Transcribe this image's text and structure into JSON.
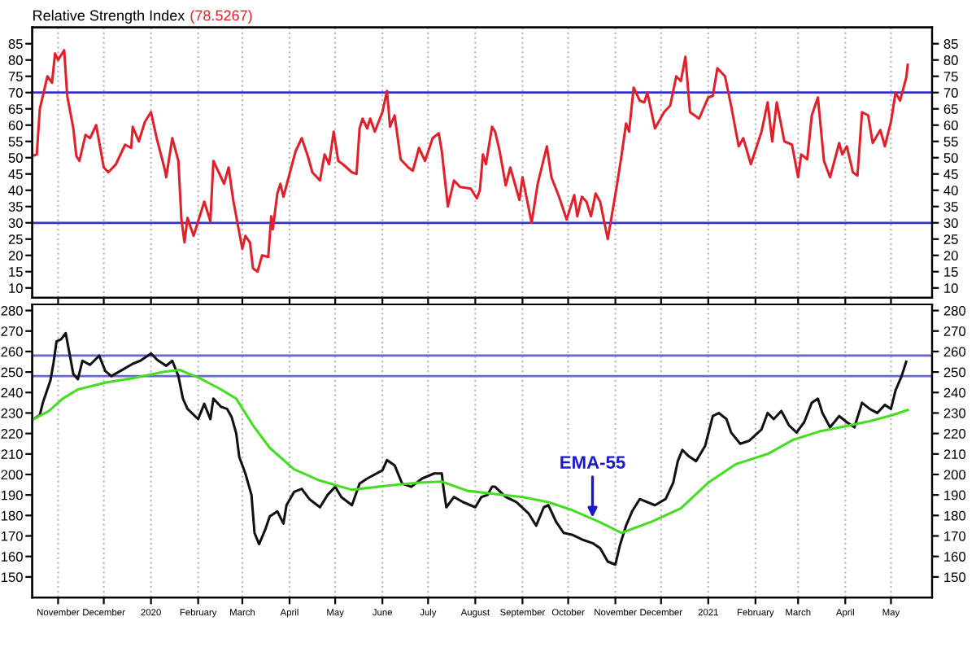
{
  "chart_data": [
    {
      "type": "line",
      "title": "Relative Strength Index",
      "subtitle": "(78.5267)",
      "x": [
        "2019-10-15",
        "2019-10-18",
        "2019-10-20",
        "2019-10-25",
        "2019-10-28",
        "2019-10-30",
        "2019-11-01",
        "2019-11-05",
        "2019-11-07",
        "2019-11-11",
        "2019-11-13",
        "2019-11-15",
        "2019-11-19",
        "2019-11-22",
        "2019-11-26",
        "2019-12-01",
        "2019-12-04",
        "2019-12-09",
        "2019-12-15",
        "2019-12-19",
        "2019-12-20",
        "2019-12-24",
        "2019-12-28",
        "2020-01-01",
        "2020-01-05",
        "2020-01-10",
        "2020-01-11",
        "2020-01-15",
        "2020-01-19",
        "2020-01-21",
        "2020-01-23",
        "2020-01-25",
        "2020-01-29",
        "2020-02-05",
        "2020-02-09",
        "2020-02-11",
        "2020-02-16",
        "2020-02-18",
        "2020-02-21",
        "2020-02-24",
        "2020-03-01",
        "2020-03-03",
        "2020-03-06",
        "2020-03-08",
        "2020-03-11",
        "2020-03-14",
        "2020-03-18",
        "2020-03-20",
        "2020-03-21",
        "2020-03-24",
        "2020-03-26",
        "2020-03-28",
        "2020-04-01",
        "2020-04-05",
        "2020-04-09",
        "2020-04-13",
        "2020-04-16",
        "2020-04-21",
        "2020-04-24",
        "2020-04-27",
        "2020-04-30",
        "2020-05-03",
        "2020-05-06",
        "2020-05-12",
        "2020-05-15",
        "2020-05-17",
        "2020-05-19",
        "2020-05-22",
        "2020-05-24",
        "2020-05-27",
        "2020-06-01",
        "2020-06-04",
        "2020-06-06",
        "2020-06-09",
        "2020-06-13",
        "2020-06-18",
        "2020-06-21",
        "2020-06-25",
        "2020-06-29",
        "2020-07-04",
        "2020-07-08",
        "2020-07-10",
        "2020-07-14",
        "2020-07-18",
        "2020-07-22",
        "2020-07-29",
        "2020-08-02",
        "2020-08-04",
        "2020-08-06",
        "2020-08-08",
        "2020-08-12",
        "2020-08-14",
        "2020-08-17",
        "2020-08-21",
        "2020-08-24",
        "2020-08-30",
        "2020-09-01",
        "2020-09-04",
        "2020-09-07",
        "2020-09-11",
        "2020-09-17",
        "2020-09-20",
        "2020-09-25",
        "2020-09-30",
        "2020-10-05",
        "2020-10-07",
        "2020-10-10",
        "2020-10-13",
        "2020-10-16",
        "2020-10-19",
        "2020-10-22",
        "2020-10-27",
        "2020-10-29",
        "2020-11-02",
        "2020-11-05",
        "2020-11-08",
        "2020-11-10",
        "2020-11-13",
        "2020-11-17",
        "2020-11-20",
        "2020-11-22",
        "2020-11-27",
        "2020-12-03",
        "2020-12-07",
        "2020-12-11",
        "2020-12-14",
        "2020-12-17",
        "2020-12-20",
        "2020-12-26",
        "2021-01-01",
        "2021-01-04",
        "2021-01-07",
        "2021-01-12",
        "2021-01-16",
        "2021-01-21",
        "2021-01-24",
        "2021-01-29",
        "2021-02-05",
        "2021-02-09",
        "2021-02-12",
        "2021-02-15",
        "2021-02-20",
        "2021-02-25",
        "2021-03-01",
        "2021-03-03",
        "2021-03-07",
        "2021-03-10",
        "2021-03-14",
        "2021-03-18",
        "2021-03-22",
        "2021-03-28",
        "2021-03-30",
        "2021-04-02",
        "2021-04-06",
        "2021-04-09",
        "2021-04-12",
        "2021-04-16",
        "2021-04-19",
        "2021-04-24",
        "2021-04-27",
        "2021-05-01",
        "2021-05-04",
        "2021-05-07",
        "2021-05-11",
        "2021-05-12"
      ],
      "series": [
        {
          "color": "#e0202a",
          "values": [
            50.5,
            51,
            65,
            75,
            73,
            82,
            80,
            83,
            69,
            59,
            50.5,
            49,
            57,
            56,
            60,
            47,
            45.5,
            48,
            54,
            53,
            59.5,
            55,
            61,
            64,
            55.5,
            46.5,
            44,
            56,
            49,
            31,
            24,
            31.5,
            26,
            36.5,
            30.5,
            49,
            44,
            42,
            47,
            37,
            22,
            26,
            24,
            16,
            15,
            20,
            19.5,
            32,
            28,
            39,
            42,
            38,
            45,
            52,
            56,
            50.5,
            45.5,
            43,
            51,
            48,
            58,
            49,
            48,
            45.5,
            45,
            59,
            62,
            59,
            62,
            58,
            64,
            70.5,
            59.5,
            63,
            49.5,
            47,
            46,
            53,
            49,
            56,
            57.5,
            52,
            35,
            43,
            41,
            40.5,
            37.5,
            40,
            51,
            48,
            59.5,
            58,
            52,
            41.5,
            47,
            37,
            44,
            37,
            30,
            42,
            53.5,
            44,
            38,
            31,
            38.5,
            32,
            38,
            36.5,
            32,
            39,
            36.5,
            25,
            30.5,
            41.5,
            50.5,
            60.5,
            58,
            71.5,
            67.5,
            67,
            70,
            59,
            64,
            66,
            75,
            73.5,
            81,
            64,
            62,
            68.5,
            69,
            77.5,
            75,
            66,
            53.5,
            56,
            48,
            58,
            67,
            55,
            67,
            55,
            54,
            44,
            51,
            49.5,
            63,
            68.5,
            49,
            44,
            54.5,
            51,
            53.5,
            45.5,
            44.5,
            64,
            63,
            54.5,
            58.5,
            53.5,
            61,
            70,
            67.5,
            74.5,
            78.5
          ]
        }
      ],
      "xlim": [
        "2019-10-15",
        "2021-05-28"
      ],
      "xticks": [
        {
          "value": "2019-11-01",
          "label": null
        },
        {
          "value": "2019-12-01",
          "label": null
        },
        {
          "value": "2020-01-01",
          "label": null
        },
        {
          "value": "2020-02-01",
          "label": null
        },
        {
          "value": "2020-03-01",
          "label": null
        },
        {
          "value": "2020-04-01",
          "label": null
        },
        {
          "value": "2020-05-01",
          "label": null
        },
        {
          "value": "2020-06-01",
          "label": null
        },
        {
          "value": "2020-07-01",
          "label": null
        },
        {
          "value": "2020-08-01",
          "label": null
        },
        {
          "value": "2020-09-01",
          "label": null
        },
        {
          "value": "2020-10-01",
          "label": null
        },
        {
          "value": "2020-11-01",
          "label": null
        },
        {
          "value": "2020-12-01",
          "label": null
        },
        {
          "value": "2021-01-01",
          "label": null
        },
        {
          "value": "2021-02-01",
          "label": null
        },
        {
          "value": "2021-03-01",
          "label": null
        },
        {
          "value": "2021-04-01",
          "label": null
        },
        {
          "value": "2021-05-01",
          "label": null
        }
      ],
      "ylim": [
        7,
        90
      ],
      "yticks": [
        10,
        15,
        20,
        25,
        30,
        35,
        40,
        45,
        50,
        55,
        60,
        65,
        70,
        75,
        80,
        85
      ],
      "y2lim": [
        7,
        90
      ],
      "y2ticks": [
        10,
        15,
        20,
        25,
        30,
        35,
        40,
        45,
        50,
        55,
        60,
        65,
        70,
        75,
        80,
        85
      ],
      "ref_lines": [
        {
          "axis": "y",
          "value": 70,
          "color": "#3333cc"
        },
        {
          "axis": "y",
          "value": 30,
          "color": "#3333cc"
        }
      ],
      "grid": "x",
      "tick_labels": "y",
      "marker": "none",
      "line_style": "solid"
    },
    {
      "type": "line",
      "series": [
        {
          "color": "#111111",
          "x": [
            "2019-10-15",
            "2019-10-20",
            "2019-10-22",
            "2019-10-27",
            "2019-10-29",
            "2019-10-31",
            "2019-11-03",
            "2019-11-06",
            "2019-11-08",
            "2019-11-11",
            "2019-11-14",
            "2019-11-17",
            "2019-11-22",
            "2019-11-28",
            "2019-12-02",
            "2019-12-06",
            "2019-12-13",
            "2019-12-20",
            "2019-12-25",
            "2020-01-01",
            "2020-01-05",
            "2020-01-11",
            "2020-01-15",
            "2020-01-19",
            "2020-01-22",
            "2020-01-25",
            "2020-02-01",
            "2020-02-05",
            "2020-02-09",
            "2020-02-11",
            "2020-02-16",
            "2020-02-20",
            "2020-02-23",
            "2020-02-26",
            "2020-02-28",
            "2020-03-03",
            "2020-03-07",
            "2020-03-09",
            "2020-03-12",
            "2020-03-16",
            "2020-03-19",
            "2020-03-24",
            "2020-03-28",
            "2020-03-30",
            "2020-04-04",
            "2020-04-09",
            "2020-04-14",
            "2020-04-21",
            "2020-04-26",
            "2020-05-01",
            "2020-05-05",
            "2020-05-12",
            "2020-05-17",
            "2020-05-22",
            "2020-06-01",
            "2020-06-04",
            "2020-06-09",
            "2020-06-14",
            "2020-06-20",
            "2020-06-27",
            "2020-07-05",
            "2020-07-10",
            "2020-07-11",
            "2020-07-13",
            "2020-07-18",
            "2020-07-24",
            "2020-08-01",
            "2020-08-05",
            "2020-08-09",
            "2020-08-12",
            "2020-08-14",
            "2020-08-21",
            "2020-08-28",
            "2020-09-05",
            "2020-09-10",
            "2020-09-15",
            "2020-09-18",
            "2020-09-23",
            "2020-09-28",
            "2020-10-04",
            "2020-10-11",
            "2020-10-17",
            "2020-10-22",
            "2020-10-27",
            "2020-11-01",
            "2020-11-04",
            "2020-11-08",
            "2020-11-12",
            "2020-11-17",
            "2020-11-22",
            "2020-11-27",
            "2020-12-04",
            "2020-12-09",
            "2020-12-12",
            "2020-12-15",
            "2020-12-19",
            "2020-12-24",
            "2020-12-30",
            "2021-01-04",
            "2021-01-08",
            "2021-01-13",
            "2021-01-16",
            "2021-01-22",
            "2021-01-28",
            "2021-02-05",
            "2021-02-09",
            "2021-02-13",
            "2021-02-18",
            "2021-02-23",
            "2021-02-28",
            "2021-03-05",
            "2021-03-10",
            "2021-03-14",
            "2021-03-17",
            "2021-03-22",
            "2021-03-28",
            "2021-04-02",
            "2021-04-07",
            "2021-04-12",
            "2021-04-17",
            "2021-04-22",
            "2021-04-27",
            "2021-05-01",
            "2021-05-04",
            "2021-05-08",
            "2021-05-11"
          ],
          "values": [
            226.6,
            229,
            235,
            246,
            254.5,
            265,
            266,
            269,
            261,
            249,
            246.5,
            255.5,
            253.5,
            258,
            250.5,
            248,
            251,
            254,
            255.5,
            259,
            256,
            253,
            255.5,
            248,
            237,
            232,
            227,
            234.5,
            227,
            237,
            233,
            232,
            228,
            220,
            208.5,
            200.5,
            190,
            171.5,
            166,
            173,
            179.5,
            182,
            176,
            185,
            191.5,
            193,
            188,
            184,
            190,
            194,
            189,
            185,
            195.5,
            198,
            202,
            207,
            204.5,
            195.5,
            194,
            198,
            200.5,
            200.5,
            194,
            184,
            189,
            186.5,
            184,
            189,
            190,
            194,
            194,
            189,
            186.5,
            181,
            175,
            184,
            185,
            177,
            171.5,
            170.5,
            168,
            166.5,
            164,
            157.5,
            156,
            165.5,
            175,
            182,
            188,
            186.5,
            185,
            188,
            196,
            206.5,
            212,
            209,
            206.5,
            214,
            228.5,
            230,
            227,
            220.5,
            215,
            216.5,
            222,
            230,
            227,
            231,
            224,
            220.5,
            225.5,
            235,
            237,
            230,
            223,
            228.5,
            225.5,
            223,
            235,
            232,
            230,
            234,
            232,
            241,
            248,
            255
          ]
        },
        {
          "color": "#44dd22",
          "x": [
            "2019-10-15",
            "2019-10-26",
            "2019-11-04",
            "2019-11-14",
            "2019-12-03",
            "2019-12-20",
            "2020-01-09",
            "2020-01-20",
            "2020-02-02",
            "2020-02-16",
            "2020-02-26",
            "2020-03-08",
            "2020-03-19",
            "2020-04-04",
            "2020-04-21",
            "2020-05-12",
            "2020-06-04",
            "2020-06-25",
            "2020-07-10",
            "2020-07-27",
            "2020-08-14",
            "2020-09-01",
            "2020-09-18",
            "2020-10-04",
            "2020-10-21",
            "2020-11-05",
            "2020-11-25",
            "2020-12-14",
            "2021-01-01",
            "2021-01-19",
            "2021-02-09",
            "2021-02-26",
            "2021-03-15",
            "2021-04-01",
            "2021-04-17",
            "2021-05-02",
            "2021-05-12"
          ],
          "values": [
            226.6,
            231,
            237,
            241.5,
            245,
            247,
            250,
            251,
            247,
            241.5,
            237,
            224,
            213,
            202.5,
            197,
            192.5,
            194.5,
            196,
            196.5,
            192,
            190.5,
            189,
            186.5,
            182.5,
            177,
            171.5,
            177,
            183.5,
            196,
            205,
            210,
            217,
            221,
            223.5,
            226,
            229,
            231.5
          ]
        }
      ],
      "xlim": [
        "2019-10-15",
        "2021-05-28"
      ],
      "xticks": [
        {
          "value": "2019-11-01",
          "label": "November"
        },
        {
          "value": "2019-12-01",
          "label": "December"
        },
        {
          "value": "2020-01-01",
          "label": "2020"
        },
        {
          "value": "2020-02-01",
          "label": "February"
        },
        {
          "value": "2020-03-01",
          "label": "March"
        },
        {
          "value": "2020-04-01",
          "label": "April"
        },
        {
          "value": "2020-05-01",
          "label": "May"
        },
        {
          "value": "2020-06-01",
          "label": "June"
        },
        {
          "value": "2020-07-01",
          "label": "July"
        },
        {
          "value": "2020-08-01",
          "label": "August"
        },
        {
          "value": "2020-09-01",
          "label": "September"
        },
        {
          "value": "2020-10-01",
          "label": "October"
        },
        {
          "value": "2020-11-01",
          "label": "November"
        },
        {
          "value": "2020-12-01",
          "label": "December"
        },
        {
          "value": "2021-01-01",
          "label": "2021"
        },
        {
          "value": "2021-02-01",
          "label": "February"
        },
        {
          "value": "2021-03-01",
          "label": "March"
        },
        {
          "value": "2021-04-01",
          "label": "April"
        },
        {
          "value": "2021-05-01",
          "label": "May"
        }
      ],
      "ylim": [
        140,
        283
      ],
      "yticks": [
        150,
        160,
        170,
        180,
        190,
        200,
        210,
        220,
        230,
        240,
        250,
        260,
        270,
        280
      ],
      "y2lim": [
        140,
        283
      ],
      "y2ticks": [
        150,
        160,
        170,
        180,
        190,
        200,
        210,
        220,
        230,
        240,
        250,
        260,
        270,
        280
      ],
      "ref_lines": [
        {
          "axis": "y",
          "value": 258,
          "color": "#6666cc"
        },
        {
          "axis": "y",
          "value": 248,
          "color": "#6666cc"
        }
      ],
      "annotations": [
        {
          "text": "EMA-55",
          "x": "2020-10-17",
          "y": 179
        }
      ],
      "grid": "x",
      "marker": "none",
      "line_style": "solid"
    }
  ]
}
